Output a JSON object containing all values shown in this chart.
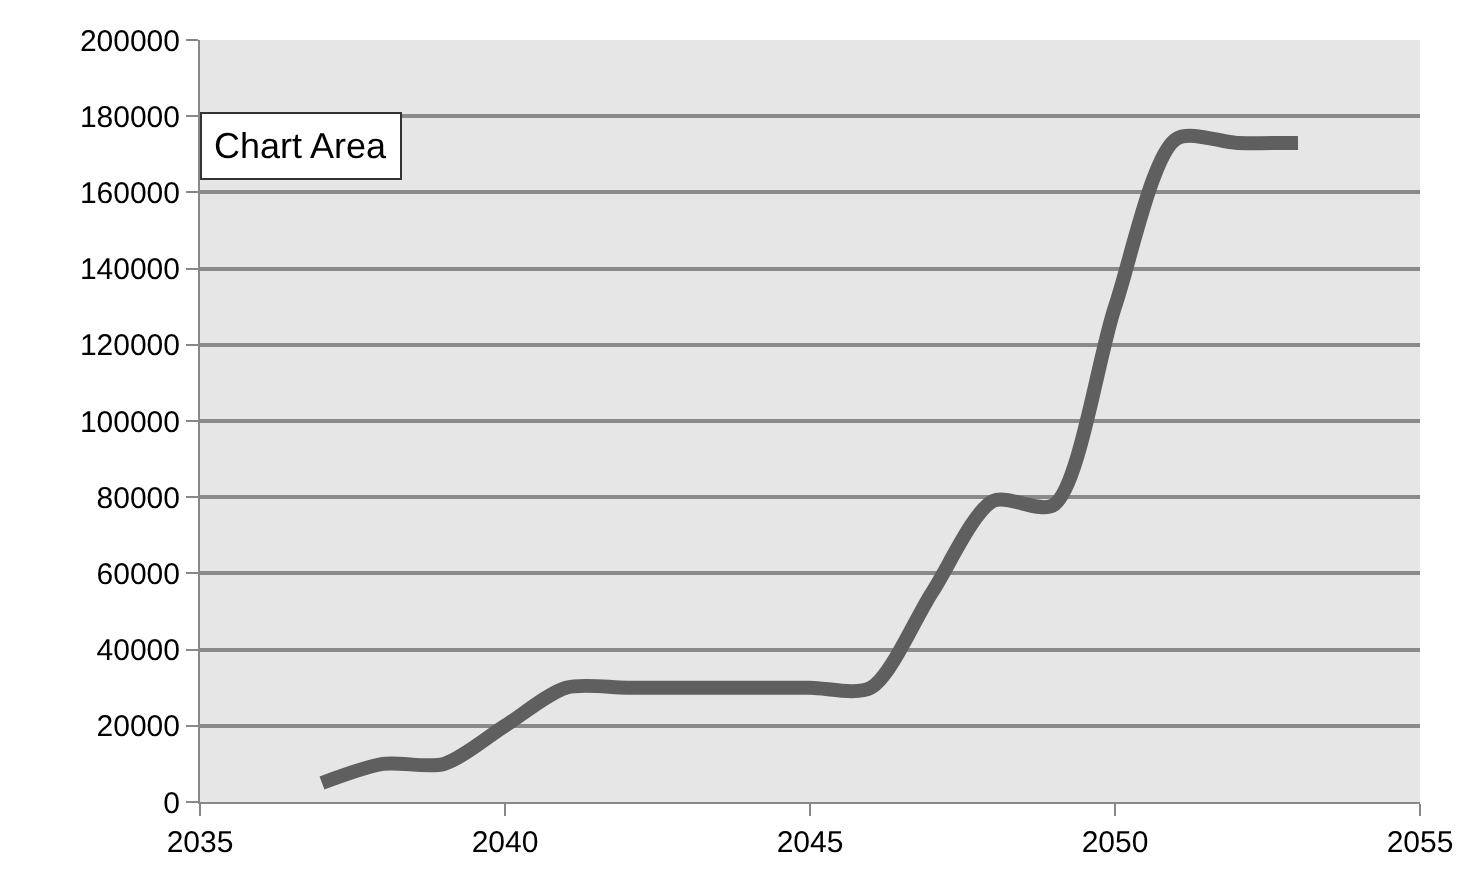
{
  "chart_data": {
    "type": "line",
    "x": [
      2037,
      2038,
      2039,
      2040,
      2041,
      2042,
      2043,
      2044,
      2045,
      2046,
      2047,
      2048,
      2049,
      2050,
      2051,
      2052,
      2053
    ],
    "series": [
      {
        "color": "#5f5f5f",
        "values": [
          5000,
          10000,
          10000,
          20000,
          30000,
          30000,
          30000,
          30000,
          30000,
          30000,
          55000,
          79000,
          78000,
          130000,
          174000,
          173000,
          173000
        ]
      }
    ],
    "xlim": [
      2035,
      2055
    ],
    "xticks": [
      2035,
      2040,
      2045,
      2050,
      2055
    ],
    "ylim": [
      0,
      200000
    ],
    "yticks": [
      0,
      20000,
      40000,
      60000,
      80000,
      100000,
      120000,
      140000,
      160000,
      180000,
      200000
    ],
    "grid": "y",
    "marker": "none",
    "line_style": "solid",
    "annotations": [
      "Chart Area"
    ]
  }
}
